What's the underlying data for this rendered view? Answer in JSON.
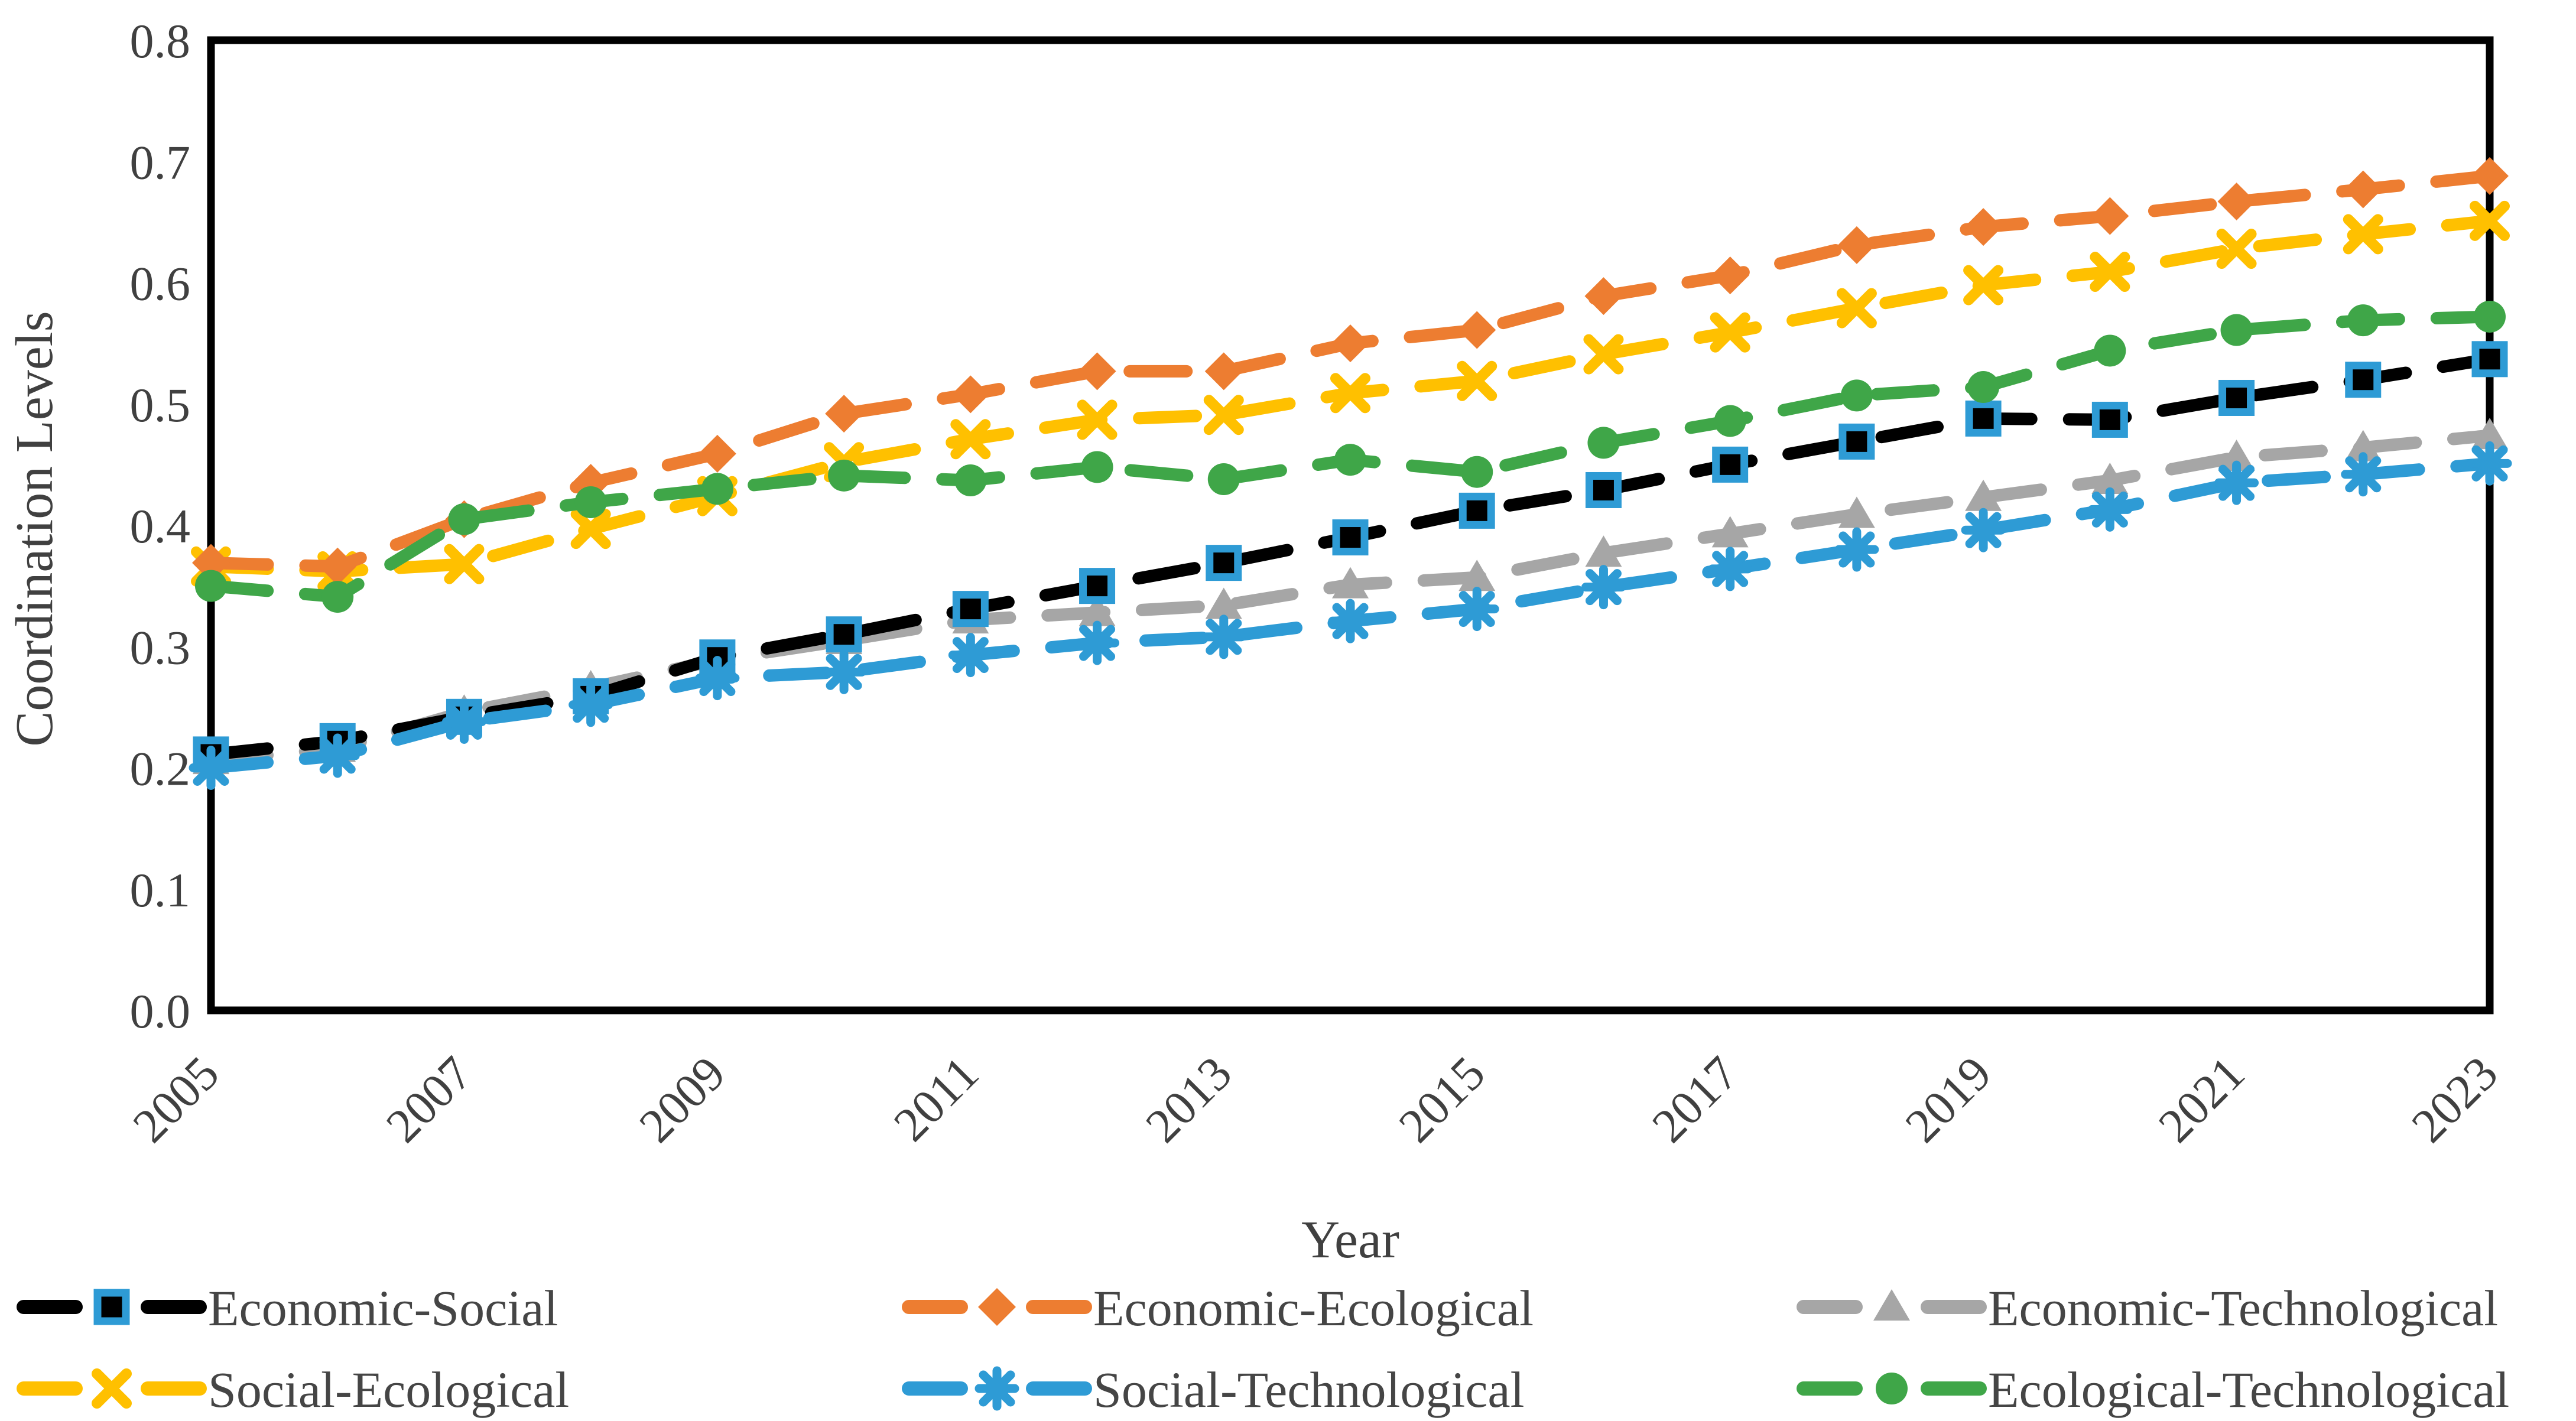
{
  "chart_data": {
    "type": "line",
    "title": "",
    "xlabel": "Year",
    "ylabel": "Coordination Levels",
    "x_years": [
      2005,
      2006,
      2007,
      2008,
      2009,
      2010,
      2011,
      2012,
      2013,
      2014,
      2015,
      2016,
      2017,
      2018,
      2019,
      2020,
      2021,
      2022,
      2023
    ],
    "xtick_labels": [
      "2005",
      "2007",
      "2009",
      "2011",
      "2013",
      "2015",
      "2017",
      "2019",
      "2021",
      "2023"
    ],
    "ytick_labels": [
      "0.0",
      "0.1",
      "0.2",
      "0.3",
      "0.4",
      "0.5",
      "0.6",
      "0.7",
      "0.8"
    ],
    "ylim": [
      0.0,
      0.8
    ],
    "grid": "off",
    "legend_position": "bottom",
    "line_style": "dashed",
    "frame_color": "#000000",
    "axis_text_color": "#404040",
    "series": [
      {
        "name": "Economic-Social",
        "color": "#000000",
        "marker": "square",
        "marker_border": "#2E9BD5",
        "values": [
          0.211,
          0.222,
          0.242,
          0.259,
          0.291,
          0.31,
          0.331,
          0.35,
          0.369,
          0.39,
          0.412,
          0.429,
          0.45,
          0.469,
          0.488,
          0.487,
          0.505,
          0.52,
          0.537
        ]
      },
      {
        "name": "Economic-Ecological",
        "color": "#ED7D31",
        "marker": "diamond",
        "marker_border": "",
        "values": [
          0.369,
          0.366,
          0.405,
          0.435,
          0.459,
          0.492,
          0.508,
          0.527,
          0.527,
          0.55,
          0.561,
          0.589,
          0.606,
          0.631,
          0.646,
          0.655,
          0.667,
          0.677,
          0.688
        ]
      },
      {
        "name": "Economic-Technological",
        "color": "#A6A6A6",
        "marker": "triangle",
        "marker_border": "",
        "values": [
          0.206,
          0.216,
          0.246,
          0.266,
          0.289,
          0.305,
          0.322,
          0.328,
          0.334,
          0.351,
          0.357,
          0.377,
          0.393,
          0.409,
          0.423,
          0.437,
          0.456,
          0.464,
          0.474
        ]
      },
      {
        "name": "Social-Ecological",
        "color": "#FFC000",
        "marker": "x",
        "marker_border": "",
        "values": [
          0.366,
          0.362,
          0.368,
          0.397,
          0.424,
          0.452,
          0.471,
          0.487,
          0.491,
          0.509,
          0.519,
          0.541,
          0.559,
          0.579,
          0.598,
          0.609,
          0.628,
          0.64,
          0.651
        ]
      },
      {
        "name": "Social-Technological",
        "color": "#2E9BD5",
        "marker": "asterisk",
        "marker_border": "",
        "values": [
          0.2,
          0.21,
          0.238,
          0.252,
          0.274,
          0.279,
          0.293,
          0.303,
          0.308,
          0.321,
          0.331,
          0.349,
          0.364,
          0.38,
          0.396,
          0.413,
          0.435,
          0.442,
          0.451
        ]
      },
      {
        "name": "Ecological-Technological",
        "color": "#3FA648",
        "marker": "circle",
        "marker_border": "",
        "values": [
          0.35,
          0.341,
          0.405,
          0.419,
          0.43,
          0.441,
          0.437,
          0.448,
          0.438,
          0.454,
          0.444,
          0.468,
          0.486,
          0.507,
          0.514,
          0.544,
          0.561,
          0.569,
          0.572
        ]
      }
    ]
  }
}
